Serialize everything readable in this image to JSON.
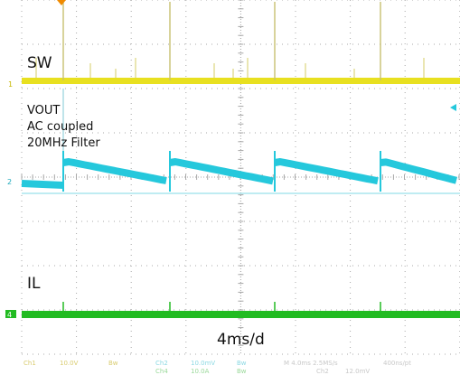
{
  "labels": {
    "sw": "SW",
    "vout_lines": [
      "VOUT",
      "AC coupled",
      "20MHz Filter"
    ],
    "il": "IL",
    "timebase": "4ms/d"
  },
  "markers": {
    "ch1": "1",
    "ch2": "2",
    "ch4": "4"
  },
  "status_bar": {
    "row1": [
      "Ch1",
      "10.0V",
      "Bw",
      "Ch2",
      "10.0mV",
      "Bw",
      "M 4.0ms 2.5MS/s",
      "400ns/pt"
    ],
    "row2": [
      "Ch4",
      "10.0A",
      "Bw",
      "Ch2",
      "12.0mV"
    ]
  },
  "colors": {
    "sw": "#e8e020",
    "vout": "#25c8dc",
    "il": "#22bb22",
    "grid": "#a8a8a8",
    "trigger": "#f08a00"
  }
}
